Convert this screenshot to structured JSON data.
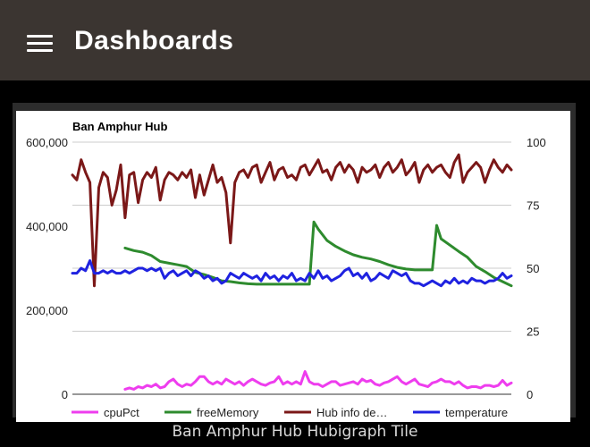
{
  "header": {
    "title": "Dashboards",
    "menu_icon": "hamburger-menu-icon"
  },
  "tile": {
    "caption": "Ban Amphur Hub Hubigraph Tile"
  },
  "colors": {
    "app_bar": "#3b3531",
    "cpuPct": "#ee3dee",
    "freeMemory": "#2e8b2e",
    "hubInfo": "#7b1818",
    "temperature": "#1f22e0"
  },
  "chart_data": {
    "type": "line",
    "title": "Ban Amphur Hub",
    "grid": true,
    "legend_position": "bottom",
    "left_axis": {
      "ylim": [
        0,
        600000
      ],
      "ticks": [
        0,
        200000,
        400000,
        600000
      ],
      "tick_labels": [
        "0",
        "200,000",
        "400,000",
        "600,000"
      ]
    },
    "right_axis": {
      "ylim": [
        0,
        100
      ],
      "ticks": [
        0,
        25,
        50,
        75,
        100
      ],
      "tick_labels": [
        "0",
        "25",
        "50",
        "75",
        "100"
      ]
    },
    "legend": [
      "cpuPct",
      "freeMemory",
      "Hub info de…",
      "temperature"
    ],
    "series": [
      {
        "name": "cpuPct",
        "axis": "right",
        "color": "#ee3dee",
        "x": [
          12,
          13,
          14,
          15,
          16,
          17,
          18,
          19,
          20,
          21,
          22,
          23,
          24,
          25,
          26,
          27,
          28,
          29,
          30,
          31,
          32,
          33,
          34,
          35,
          36,
          37,
          38,
          39,
          40,
          41,
          42,
          43,
          44,
          45,
          46,
          47,
          48,
          49,
          50,
          51,
          52,
          53,
          54,
          55,
          56,
          57,
          58,
          59,
          60,
          61,
          62,
          63,
          64,
          65,
          66,
          67,
          68,
          69,
          70,
          71,
          72,
          73,
          74,
          75,
          76,
          77,
          78,
          79,
          80,
          81,
          82,
          83,
          84,
          85,
          86,
          87,
          88,
          89,
          90,
          91,
          92,
          93,
          94,
          95,
          96,
          97,
          98,
          99,
          100
        ],
        "values": [
          2,
          2.5,
          2,
          3,
          2.5,
          3.5,
          3,
          4,
          2.5,
          3,
          5,
          6,
          4,
          3,
          4,
          3.5,
          5,
          7,
          7,
          5,
          4,
          5,
          4,
          6,
          5,
          4,
          5,
          3.5,
          5,
          6,
          5,
          4,
          3.5,
          4.5,
          5,
          7,
          4,
          5,
          4,
          5,
          4,
          9,
          5,
          4,
          4,
          3,
          4,
          5,
          5,
          3.5,
          4,
          4.5,
          5,
          4,
          6,
          5,
          5.5,
          4,
          3.5,
          4.5,
          5,
          6,
          7,
          5,
          4,
          5,
          6,
          4,
          3.5,
          3,
          4.5,
          5,
          6,
          5,
          5,
          4,
          5,
          3.5,
          2.5,
          3,
          3,
          2.5,
          3.5,
          3.5,
          3,
          3.5,
          5.5,
          3.5,
          4.5
        ]
      },
      {
        "name": "freeMemory",
        "axis": "left",
        "color": "#2e8b2e",
        "x": [
          12,
          14,
          16,
          18,
          20,
          22,
          24,
          26,
          28,
          30,
          32,
          34,
          36,
          38,
          40,
          42,
          44,
          46,
          48,
          50,
          52,
          54,
          55,
          56,
          58,
          60,
          62,
          64,
          66,
          68,
          70,
          72,
          74,
          76,
          78,
          80,
          82,
          83,
          84,
          86,
          88,
          90,
          92,
          94,
          96,
          98,
          100
        ],
        "values": [
          348000,
          342000,
          338000,
          330000,
          316000,
          312000,
          308000,
          304000,
          290000,
          285000,
          278000,
          270000,
          268000,
          265000,
          263000,
          262000,
          262000,
          262000,
          262000,
          262000,
          262000,
          262000,
          410000,
          393000,
          366000,
          352000,
          341000,
          332000,
          326000,
          322000,
          316000,
          308000,
          302000,
          298000,
          296000,
          296000,
          296000,
          402000,
          370000,
          355000,
          340000,
          326000,
          304000,
          292000,
          278000,
          268000,
          258000
        ]
      },
      {
        "name": "Hub info de…",
        "axis": "right",
        "color": "#7b1818",
        "x": [
          0,
          1,
          2,
          3,
          4,
          5,
          6,
          7,
          8,
          9,
          10,
          11,
          12,
          13,
          14,
          15,
          16,
          17,
          18,
          19,
          20,
          21,
          22,
          23,
          24,
          25,
          26,
          27,
          28,
          29,
          30,
          31,
          32,
          33,
          34,
          35,
          36,
          37,
          38,
          39,
          40,
          41,
          42,
          43,
          44,
          45,
          46,
          47,
          48,
          49,
          50,
          51,
          52,
          53,
          54,
          55,
          56,
          57,
          58,
          59,
          60,
          61,
          62,
          63,
          64,
          65,
          66,
          67,
          68,
          69,
          70,
          71,
          72,
          73,
          74,
          75,
          76,
          77,
          78,
          79,
          80,
          81,
          82,
          83,
          84,
          85,
          86,
          87,
          88,
          89,
          90,
          91,
          92,
          93,
          94,
          95,
          96,
          97,
          98,
          99,
          100
        ],
        "values": [
          87,
          85,
          93,
          88,
          84,
          43,
          82,
          88,
          86,
          75,
          81,
          91,
          70,
          87,
          88,
          76,
          85,
          88,
          86,
          90,
          77,
          85,
          88,
          87,
          85,
          88,
          86,
          89,
          78,
          87,
          79,
          85,
          91,
          84,
          86,
          80,
          60,
          84,
          88,
          89,
          86,
          90,
          91,
          84,
          88,
          92,
          85,
          89,
          90,
          86,
          87,
          85,
          90,
          91,
          87,
          90,
          93,
          88,
          89,
          85,
          90,
          92,
          88,
          91,
          89,
          84,
          90,
          88,
          89,
          91,
          86,
          90,
          92,
          88,
          90,
          93,
          87,
          89,
          92,
          84,
          89,
          91,
          88,
          90,
          91,
          88,
          86,
          92,
          95,
          84,
          88,
          90,
          92,
          90,
          84,
          89,
          93,
          90,
          88,
          91,
          89
        ]
      },
      {
        "name": "temperature",
        "axis": "right",
        "color": "#1f22e0",
        "x": [
          0,
          1,
          2,
          3,
          4,
          5,
          6,
          7,
          8,
          9,
          10,
          11,
          12,
          13,
          14,
          15,
          16,
          17,
          18,
          19,
          20,
          21,
          22,
          23,
          24,
          25,
          26,
          27,
          28,
          29,
          30,
          31,
          32,
          33,
          34,
          35,
          36,
          37,
          38,
          39,
          40,
          41,
          42,
          43,
          44,
          45,
          46,
          47,
          48,
          49,
          50,
          51,
          52,
          53,
          54,
          55,
          56,
          57,
          58,
          59,
          60,
          61,
          62,
          63,
          64,
          65,
          66,
          67,
          68,
          69,
          70,
          71,
          72,
          73,
          74,
          75,
          76,
          77,
          78,
          79,
          80,
          81,
          82,
          83,
          84,
          85,
          86,
          87,
          88,
          89,
          90,
          91,
          92,
          93,
          94,
          95,
          96,
          97,
          98,
          99,
          100
        ],
        "values": [
          48,
          48,
          50,
          49,
          53,
          48,
          48,
          49,
          48,
          49,
          48,
          48,
          49,
          48,
          49,
          50,
          50,
          49,
          50,
          49,
          50,
          46,
          48,
          49,
          47,
          48,
          49,
          47,
          49,
          48,
          46,
          47,
          45,
          46,
          44,
          45,
          48,
          47,
          46,
          48,
          47,
          46,
          47,
          45,
          48,
          46,
          47,
          45,
          47,
          46,
          48,
          45,
          46,
          45,
          48,
          46,
          49,
          46,
          47,
          45,
          46,
          47,
          49,
          50,
          47,
          48,
          46,
          48,
          45,
          46,
          48,
          47,
          46,
          49,
          48,
          47,
          48,
          45,
          44,
          44,
          43,
          44,
          45,
          44,
          43,
          45,
          44,
          46,
          44,
          45,
          44,
          46,
          45,
          45,
          44,
          45,
          45,
          46,
          48,
          46,
          47
        ]
      }
    ]
  }
}
